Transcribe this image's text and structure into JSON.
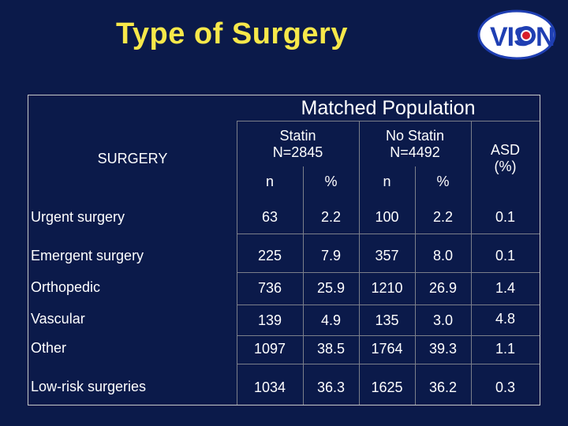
{
  "title": "Type of Surgery",
  "logo": {
    "text": "VISION",
    "colors": {
      "blue": "#1f3fb3",
      "red": "#d81e2a",
      "white": "#ffffff"
    }
  },
  "table": {
    "group_header": "Matched Population",
    "row_header": "SURGERY",
    "statin_header": {
      "line1": "Statin",
      "line2": "N=2845"
    },
    "nostatin_header": {
      "line1": "No Statin",
      "line2": "N=4492"
    },
    "asd_header": {
      "line1": "ASD",
      "line2": "(%)"
    },
    "sub": {
      "n": "n",
      "pct": "%"
    },
    "rows": [
      {
        "label": "Urgent surgery",
        "statin_n": "63",
        "statin_pct": "2.2",
        "nostatin_n": "100",
        "nostatin_pct": "2.2",
        "asd": "0.1"
      },
      {
        "label": "Emergent surgery",
        "statin_n": "225",
        "statin_pct": "7.9",
        "nostatin_n": "357",
        "nostatin_pct": "8.0",
        "asd": "0.1"
      },
      {
        "label": "Orthopedic",
        "statin_n": "736",
        "statin_pct": "25.9",
        "nostatin_n": "1210",
        "nostatin_pct": "26.9",
        "asd": "1.4"
      },
      {
        "label": "Vascular",
        "statin_n": "139",
        "statin_pct": "4.9",
        "nostatin_n": "135",
        "nostatin_pct": "3.0",
        "asd": "4.8"
      },
      {
        "label": "Other",
        "statin_n": "1097",
        "statin_pct": "38.5",
        "nostatin_n": "1764",
        "nostatin_pct": "39.3",
        "asd": "1.1"
      },
      {
        "label": "Low-risk surgeries",
        "statin_n": "1034",
        "statin_pct": "36.3",
        "nostatin_n": "1625",
        "nostatin_pct": "36.2",
        "asd": "0.3"
      }
    ]
  }
}
